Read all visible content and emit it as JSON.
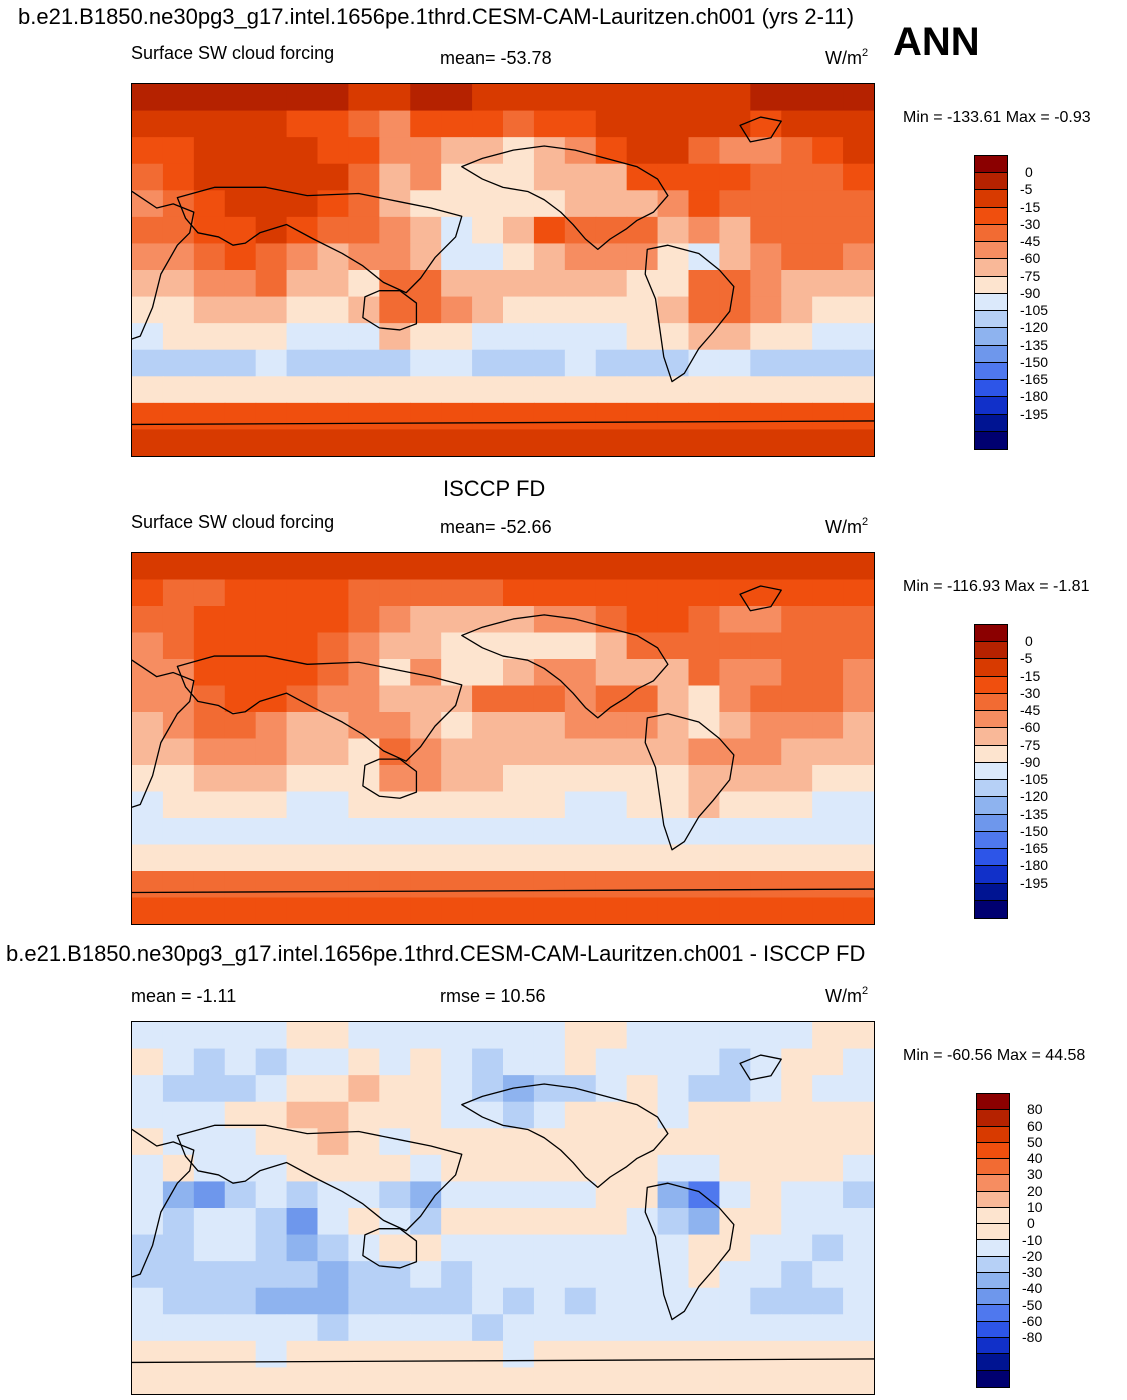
{
  "header": {
    "case_title": "b.e21.B1850.ne30pg3_g17.intel.1656pe.1thrd.CESM-CAM-Lauritzen.ch001 (yrs 2-11)",
    "season": "ANN"
  },
  "palettes": {
    "abs": [
      "#8b0000",
      "#b52200",
      "#d83a00",
      "#f04f0e",
      "#f26b33",
      "#f68d61",
      "#f9b898",
      "#fde4cf",
      "#dbe9fb",
      "#b6d0f6",
      "#8eb3ef",
      "#6e97ec",
      "#4f78ee",
      "#2d55e8",
      "#1130c9",
      "#001492",
      "#000070"
    ],
    "diff": [
      "#8b0000",
      "#b52200",
      "#d83a00",
      "#f04f0e",
      "#f26b33",
      "#f68d61",
      "#f9b898",
      "#fde4cf",
      "#fde4cf",
      "#dbe9fb",
      "#b6d0f6",
      "#8eb3ef",
      "#6e97ec",
      "#4f78ee",
      "#2d55e8",
      "#1130c9",
      "#001492",
      "#000070"
    ],
    "coast": "#000000"
  },
  "chart_data": [
    {
      "type": "heatmap",
      "name": "model",
      "title": "Surface SW cloud forcing",
      "mean_text": "mean= -53.78",
      "units": "W/m",
      "units_sup": "2",
      "minmax": "Min = -133.61 Max =  -0.93",
      "levels": [
        "0",
        "-5",
        "-15",
        "-30",
        "-45",
        "-60",
        "-75",
        "-90",
        "-105",
        "-120",
        "-135",
        "-150",
        "-165",
        "-180",
        "-195"
      ],
      "grid": [
        [
          1,
          1,
          1,
          1,
          1,
          1,
          1,
          2,
          2,
          1,
          1,
          2,
          2,
          2,
          2,
          2,
          2,
          2,
          2,
          2,
          1,
          1,
          1,
          1
        ],
        [
          2,
          2,
          2,
          2,
          2,
          3,
          3,
          4,
          5,
          3,
          3,
          3,
          4,
          3,
          3,
          2,
          2,
          2,
          2,
          2,
          3,
          2,
          2,
          2
        ],
        [
          3,
          3,
          2,
          2,
          2,
          2,
          3,
          3,
          5,
          5,
          6,
          6,
          7,
          6,
          5,
          3,
          2,
          2,
          4,
          5,
          5,
          4,
          3,
          2
        ],
        [
          4,
          3,
          2,
          2,
          2,
          2,
          2,
          4,
          6,
          5,
          7,
          7,
          7,
          6,
          6,
          6,
          3,
          3,
          3,
          3,
          4,
          4,
          4,
          3
        ],
        [
          5,
          4,
          3,
          2,
          2,
          2,
          3,
          4,
          6,
          7,
          7,
          7,
          7,
          7,
          6,
          6,
          6,
          5,
          3,
          4,
          4,
          4,
          4,
          4
        ],
        [
          4,
          4,
          3,
          3,
          2,
          3,
          4,
          4,
          5,
          6,
          8,
          7,
          6,
          3,
          4,
          4,
          4,
          6,
          5,
          6,
          4,
          4,
          4,
          4
        ],
        [
          5,
          5,
          4,
          3,
          4,
          5,
          6,
          5,
          5,
          6,
          8,
          8,
          7,
          6,
          5,
          5,
          5,
          7,
          8,
          6,
          5,
          4,
          4,
          5
        ],
        [
          6,
          6,
          5,
          5,
          4,
          6,
          6,
          7,
          4,
          4,
          6,
          6,
          6,
          6,
          6,
          6,
          7,
          7,
          4,
          4,
          5,
          6,
          6,
          6
        ],
        [
          7,
          7,
          6,
          6,
          6,
          7,
          7,
          6,
          4,
          4,
          5,
          6,
          7,
          7,
          7,
          7,
          7,
          6,
          4,
          4,
          5,
          6,
          7,
          7
        ],
        [
          8,
          7,
          7,
          7,
          7,
          8,
          8,
          8,
          6,
          7,
          7,
          8,
          8,
          8,
          8,
          8,
          7,
          7,
          6,
          6,
          7,
          7,
          8,
          8
        ],
        [
          9,
          9,
          9,
          9,
          8,
          9,
          9,
          9,
          9,
          8,
          8,
          9,
          9,
          9,
          8,
          9,
          9,
          9,
          8,
          8,
          9,
          9,
          9,
          9
        ],
        [
          7,
          7,
          7,
          7,
          7,
          7,
          7,
          7,
          7,
          7,
          7,
          7,
          7,
          7,
          7,
          7,
          7,
          7,
          7,
          7,
          7,
          7,
          7,
          7
        ],
        [
          3,
          3,
          3,
          3,
          3,
          3,
          3,
          3,
          3,
          3,
          3,
          3,
          3,
          3,
          3,
          3,
          3,
          3,
          3,
          3,
          3,
          3,
          3,
          3
        ],
        [
          2,
          2,
          2,
          2,
          2,
          2,
          2,
          2,
          2,
          2,
          2,
          2,
          2,
          2,
          2,
          2,
          2,
          2,
          2,
          2,
          2,
          2,
          2,
          2
        ]
      ]
    },
    {
      "type": "heatmap",
      "name": "obs",
      "title": "Surface SW cloud forcing",
      "plot_title": "ISCCP FD",
      "mean_text": "mean= -52.66",
      "units": "W/m",
      "units_sup": "2",
      "minmax": "Min = -116.93 Max =  -1.81",
      "levels": [
        "0",
        "-5",
        "-15",
        "-30",
        "-45",
        "-60",
        "-75",
        "-90",
        "-105",
        "-120",
        "-135",
        "-150",
        "-165",
        "-180",
        "-195"
      ],
      "grid": [
        [
          2,
          2,
          2,
          2,
          2,
          2,
          2,
          2,
          2,
          2,
          2,
          2,
          2,
          2,
          2,
          2,
          2,
          2,
          2,
          2,
          2,
          2,
          2,
          2
        ],
        [
          3,
          4,
          4,
          3,
          3,
          3,
          3,
          4,
          4,
          4,
          4,
          4,
          3,
          3,
          3,
          3,
          3,
          3,
          3,
          3,
          3,
          3,
          3,
          3
        ],
        [
          4,
          4,
          3,
          3,
          3,
          3,
          3,
          4,
          5,
          6,
          6,
          6,
          6,
          5,
          5,
          4,
          3,
          3,
          4,
          5,
          5,
          4,
          4,
          4
        ],
        [
          5,
          4,
          3,
          3,
          3,
          3,
          4,
          5,
          6,
          6,
          7,
          7,
          7,
          7,
          7,
          6,
          4,
          4,
          4,
          4,
          4,
          4,
          4,
          4
        ],
        [
          5,
          5,
          3,
          3,
          3,
          3,
          4,
          5,
          7,
          5,
          7,
          7,
          6,
          5,
          5,
          6,
          6,
          6,
          4,
          5,
          5,
          4,
          4,
          5
        ],
        [
          5,
          5,
          4,
          3,
          3,
          4,
          5,
          5,
          6,
          6,
          6,
          4,
          4,
          4,
          5,
          4,
          4,
          6,
          7,
          5,
          4,
          4,
          4,
          5
        ],
        [
          6,
          5,
          4,
          4,
          5,
          6,
          6,
          5,
          5,
          6,
          7,
          6,
          6,
          6,
          5,
          5,
          5,
          6,
          7,
          6,
          5,
          5,
          5,
          6
        ],
        [
          6,
          6,
          5,
          5,
          5,
          6,
          6,
          7,
          4,
          5,
          6,
          6,
          6,
          6,
          6,
          6,
          6,
          6,
          5,
          5,
          5,
          6,
          6,
          6
        ],
        [
          7,
          7,
          6,
          6,
          6,
          7,
          7,
          7,
          5,
          5,
          6,
          6,
          7,
          7,
          7,
          7,
          7,
          7,
          6,
          6,
          6,
          6,
          7,
          7
        ],
        [
          8,
          7,
          7,
          7,
          7,
          8,
          8,
          7,
          7,
          7,
          7,
          7,
          7,
          7,
          8,
          8,
          7,
          7,
          6,
          7,
          7,
          7,
          8,
          8
        ],
        [
          8,
          8,
          8,
          8,
          8,
          8,
          8,
          8,
          8,
          8,
          8,
          8,
          8,
          8,
          8,
          8,
          8,
          8,
          8,
          8,
          8,
          8,
          8,
          8
        ],
        [
          7,
          7,
          7,
          7,
          7,
          7,
          7,
          7,
          7,
          7,
          7,
          7,
          7,
          7,
          7,
          7,
          7,
          7,
          7,
          7,
          7,
          7,
          7,
          7
        ],
        [
          4,
          4,
          4,
          4,
          4,
          4,
          4,
          4,
          4,
          4,
          4,
          4,
          4,
          4,
          4,
          4,
          4,
          4,
          4,
          4,
          4,
          4,
          4,
          4
        ],
        [
          3,
          3,
          3,
          3,
          3,
          3,
          3,
          3,
          3,
          3,
          3,
          3,
          3,
          3,
          3,
          3,
          3,
          3,
          3,
          3,
          3,
          3,
          3,
          3
        ]
      ]
    },
    {
      "type": "heatmap",
      "name": "diff",
      "plot_title": "b.e21.B1850.ne30pg3_g17.intel.1656pe.1thrd.CESM-CAM-Lauritzen.ch001 - ISCCP FD",
      "mean_text": "mean =  -1.11",
      "rmse_text": "rmse =  10.56",
      "units": "W/m",
      "units_sup": "2",
      "minmax": "Min = -60.56 Max =  44.58",
      "levels": [
        "80",
        "60",
        "50",
        "40",
        "30",
        "20",
        "10",
        "0",
        "-10",
        "-20",
        "-30",
        "-40",
        "-50",
        "-60",
        "-80"
      ],
      "grid": [
        [
          9,
          9,
          9,
          9,
          9,
          8,
          8,
          9,
          9,
          9,
          9,
          9,
          9,
          9,
          8,
          8,
          9,
          9,
          9,
          9,
          9,
          9,
          8,
          8
        ],
        [
          8,
          9,
          10,
          9,
          10,
          9,
          9,
          8,
          9,
          8,
          9,
          10,
          9,
          9,
          8,
          9,
          9,
          9,
          9,
          10,
          9,
          8,
          8,
          9
        ],
        [
          9,
          10,
          10,
          10,
          9,
          8,
          7,
          6,
          8,
          8,
          9,
          10,
          11,
          10,
          10,
          9,
          8,
          9,
          10,
          10,
          9,
          8,
          9,
          9
        ],
        [
          9,
          9,
          9,
          8,
          7,
          6,
          6,
          7,
          8,
          8,
          9,
          9,
          10,
          9,
          8,
          8,
          8,
          9,
          8,
          8,
          8,
          8,
          8,
          8
        ],
        [
          8,
          9,
          9,
          9,
          8,
          7,
          6,
          7,
          9,
          8,
          8,
          8,
          8,
          8,
          8,
          8,
          8,
          7,
          8,
          7,
          8,
          8,
          8,
          8
        ],
        [
          9,
          8,
          9,
          9,
          9,
          8,
          8,
          8,
          8,
          9,
          8,
          8,
          8,
          7,
          8,
          8,
          8,
          9,
          9,
          8,
          8,
          8,
          8,
          9
        ],
        [
          9,
          11,
          12,
          10,
          9,
          10,
          9,
          9,
          10,
          11,
          9,
          9,
          9,
          9,
          9,
          8,
          8,
          11,
          13,
          9,
          8,
          9,
          9,
          10
        ],
        [
          9,
          10,
          9,
          9,
          10,
          12,
          9,
          8,
          9,
          10,
          8,
          8,
          8,
          8,
          8,
          8,
          9,
          10,
          11,
          8,
          8,
          9,
          9,
          9
        ],
        [
          10,
          10,
          9,
          9,
          10,
          11,
          10,
          9,
          8,
          8,
          9,
          9,
          9,
          9,
          9,
          9,
          9,
          9,
          8,
          8,
          9,
          9,
          10,
          9
        ],
        [
          10,
          10,
          10,
          10,
          10,
          10,
          11,
          10,
          10,
          9,
          10,
          9,
          9,
          9,
          9,
          9,
          9,
          9,
          8,
          9,
          9,
          10,
          9,
          9
        ],
        [
          9,
          10,
          10,
          10,
          11,
          11,
          11,
          10,
          10,
          10,
          10,
          9,
          10,
          9,
          10,
          9,
          9,
          9,
          9,
          9,
          10,
          10,
          10,
          9
        ],
        [
          9,
          9,
          9,
          9,
          9,
          9,
          10,
          9,
          9,
          9,
          9,
          10,
          9,
          9,
          9,
          9,
          9,
          9,
          9,
          9,
          9,
          9,
          9,
          9
        ],
        [
          8,
          8,
          8,
          8,
          9,
          8,
          8,
          8,
          8,
          8,
          8,
          8,
          9,
          8,
          8,
          8,
          8,
          8,
          8,
          8,
          8,
          8,
          8,
          8
        ],
        [
          8,
          8,
          8,
          8,
          8,
          8,
          8,
          8,
          8,
          8,
          8,
          8,
          8,
          8,
          8,
          8,
          8,
          8,
          8,
          8,
          8,
          8,
          8,
          8
        ]
      ]
    }
  ]
}
